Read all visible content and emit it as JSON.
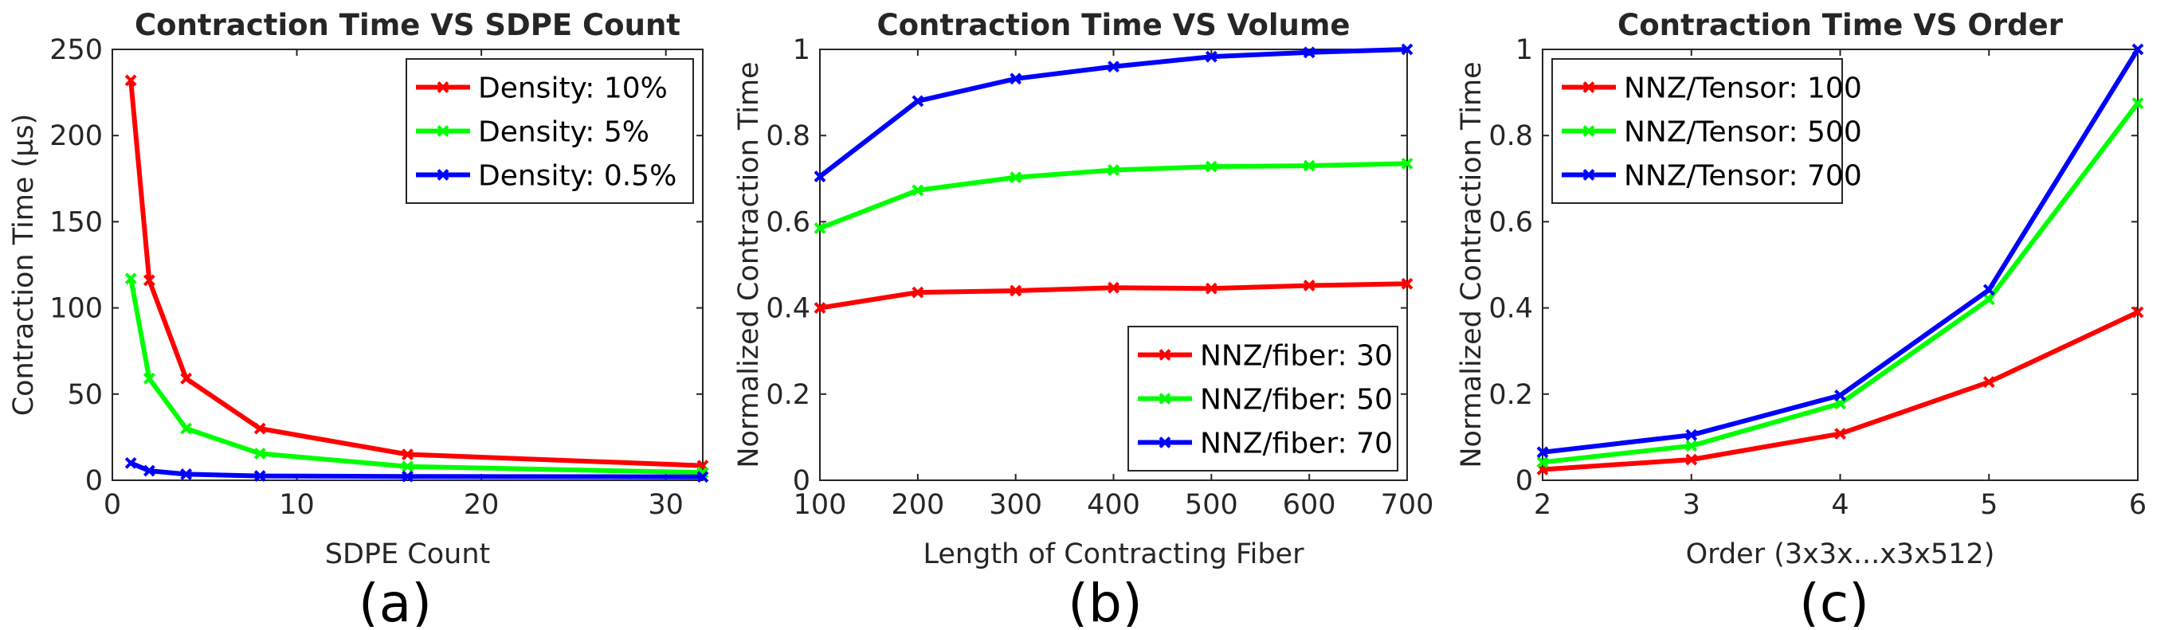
{
  "chart_data": [
    {
      "type": "line",
      "title": "Contraction Time VS SDPE Count",
      "xlabel": "SDPE Count",
      "ylabel": "Contraction Time (µs)",
      "caption": "(a)",
      "xlim": [
        0,
        32
      ],
      "ylim": [
        0,
        250
      ],
      "xticks": [
        0,
        10,
        20,
        30
      ],
      "xtick_labels": [
        "0",
        "10",
        "20",
        "30"
      ],
      "yticks": [
        0,
        50,
        100,
        150,
        200,
        250
      ],
      "ytick_labels": [
        "0",
        "50",
        "100",
        "150",
        "200",
        "250"
      ],
      "grid": false,
      "legend": "top-right",
      "series": [
        {
          "name": "Density: 10%",
          "color": "#ff0000",
          "x": [
            1,
            2,
            4,
            8,
            16,
            32
          ],
          "y": [
            232,
            116,
            59,
            30,
            15,
            8.5
          ]
        },
        {
          "name": "Density: 5%",
          "color": "#00ff00",
          "x": [
            1,
            2,
            4,
            8,
            16,
            32
          ],
          "y": [
            117,
            59,
            30,
            15.5,
            8,
            4.5
          ]
        },
        {
          "name": "Density: 0.5%",
          "color": "#0000ff",
          "x": [
            1,
            2,
            4,
            8,
            16,
            32
          ],
          "y": [
            10,
            5.5,
            3.5,
            2.5,
            2.2,
            2.0
          ]
        }
      ]
    },
    {
      "type": "line",
      "title": "Contraction Time VS Volume",
      "xlabel": "Length of Contracting Fiber",
      "ylabel": "Normalized Contraction Time",
      "caption": "(b)",
      "xlim": [
        100,
        700
      ],
      "ylim": [
        0,
        1
      ],
      "xticks": [
        100,
        200,
        300,
        400,
        500,
        600,
        700
      ],
      "xtick_labels": [
        "100",
        "200",
        "300",
        "400",
        "500",
        "600",
        "700"
      ],
      "yticks": [
        0,
        0.2,
        0.4,
        0.6,
        0.8,
        1
      ],
      "ytick_labels": [
        "0",
        "0.2",
        "0.4",
        "0.6",
        "0.8",
        "1"
      ],
      "grid": false,
      "legend": "bottom-right",
      "series": [
        {
          "name": "NNZ/fiber: 30",
          "color": "#ff0000",
          "x": [
            100,
            200,
            300,
            400,
            500,
            600,
            700
          ],
          "y": [
            0.4,
            0.436,
            0.44,
            0.447,
            0.445,
            0.452,
            0.456
          ]
        },
        {
          "name": "NNZ/fiber: 50",
          "color": "#00ff00",
          "x": [
            100,
            200,
            300,
            400,
            500,
            600,
            700
          ],
          "y": [
            0.585,
            0.673,
            0.703,
            0.72,
            0.728,
            0.73,
            0.735
          ]
        },
        {
          "name": "NNZ/fiber: 70",
          "color": "#0000ff",
          "x": [
            100,
            200,
            300,
            400,
            500,
            600,
            700
          ],
          "y": [
            0.705,
            0.88,
            0.932,
            0.96,
            0.983,
            0.993,
            1.0
          ]
        }
      ]
    },
    {
      "type": "line",
      "title": "Contraction Time VS Order",
      "xlabel": "Order (3x3x...x3x512)",
      "ylabel": "Normalized Contraction Time",
      "caption": "(c)",
      "xlim": [
        2,
        6
      ],
      "ylim": [
        0,
        1
      ],
      "xticks": [
        2,
        3,
        4,
        5,
        6
      ],
      "xtick_labels": [
        "2",
        "3",
        "4",
        "5",
        "6"
      ],
      "yticks": [
        0,
        0.2,
        0.4,
        0.6,
        0.8,
        1
      ],
      "ytick_labels": [
        "0",
        "0.2",
        "0.4",
        "0.6",
        "0.8",
        "1"
      ],
      "grid": false,
      "legend": "top-left",
      "series": [
        {
          "name": "NNZ/Tensor: 100",
          "color": "#ff0000",
          "x": [
            2,
            3,
            4,
            5,
            6
          ],
          "y": [
            0.025,
            0.048,
            0.108,
            0.228,
            0.39
          ]
        },
        {
          "name": "NNZ/Tensor: 500",
          "color": "#00ff00",
          "x": [
            2,
            3,
            4,
            5,
            6
          ],
          "y": [
            0.042,
            0.08,
            0.178,
            0.42,
            0.875
          ]
        },
        {
          "name": "NNZ/Tensor: 700",
          "color": "#0000ff",
          "x": [
            2,
            3,
            4,
            5,
            6
          ],
          "y": [
            0.065,
            0.105,
            0.197,
            0.442,
            1.0
          ]
        }
      ]
    }
  ]
}
